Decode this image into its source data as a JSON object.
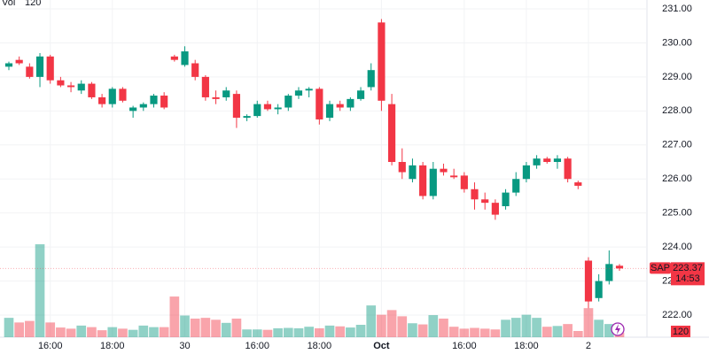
{
  "chart_data": {
    "type": "candlestick",
    "volume_label": "Vol",
    "symbol": "SAP",
    "countdown": "14:53",
    "up_color": "#089981",
    "down_color": "#f23645",
    "categories": [
      null,
      null,
      null,
      null,
      "16:00",
      null,
      null,
      null,
      null,
      null,
      "18:00",
      null,
      null,
      null,
      null,
      null,
      null,
      "30",
      null,
      null,
      null,
      null,
      null,
      null,
      "16:00",
      null,
      null,
      null,
      null,
      null,
      "18:00",
      null,
      null,
      null,
      null,
      null,
      "Oct",
      null,
      null,
      null,
      null,
      null,
      null,
      null,
      "16:00",
      null,
      null,
      null,
      null,
      null,
      "18:00",
      null,
      null,
      null,
      null,
      null,
      "2",
      null,
      null,
      null
    ],
    "open": [
      229.3,
      229.5,
      229.3,
      229.0,
      229.6,
      228.9,
      228.75,
      228.6,
      228.8,
      228.4,
      228.2,
      228.65,
      228.0,
      228.1,
      228.2,
      228.45,
      229.6,
      229.35,
      229.4,
      229.0,
      228.4,
      228.4,
      228.5,
      227.8,
      227.85,
      228.2,
      228.05,
      228.1,
      228.45,
      228.6,
      228.65,
      227.8,
      228.2,
      228.1,
      228.35,
      228.7,
      230.6,
      228.2,
      226.5,
      226.0,
      226.4,
      225.5,
      226.3,
      226.1,
      226.1,
      225.7,
      225.4,
      225.3,
      225.2,
      225.6,
      226.0,
      226.4,
      226.6,
      226.5,
      226.6,
      225.9,
      223.6,
      222.5,
      223.0,
      223.45
    ],
    "high": [
      229.45,
      229.6,
      229.4,
      229.7,
      229.65,
      229.0,
      228.85,
      228.9,
      228.85,
      228.5,
      228.7,
      228.7,
      228.15,
      228.25,
      228.5,
      228.55,
      229.65,
      229.9,
      229.5,
      229.05,
      228.6,
      228.7,
      228.6,
      227.9,
      228.3,
      228.3,
      228.2,
      228.5,
      228.7,
      228.7,
      228.7,
      228.3,
      228.3,
      228.4,
      228.7,
      229.4,
      230.7,
      228.5,
      226.9,
      226.6,
      226.5,
      226.5,
      226.45,
      226.3,
      226.2,
      225.9,
      225.6,
      225.4,
      225.7,
      226.2,
      226.5,
      226.7,
      226.65,
      226.7,
      226.65,
      225.95,
      223.7,
      223.2,
      223.9,
      223.5
    ],
    "low": [
      229.2,
      229.35,
      228.95,
      228.7,
      228.8,
      228.7,
      228.55,
      228.5,
      228.35,
      228.1,
      228.1,
      228.25,
      227.8,
      228.0,
      228.1,
      228.05,
      229.45,
      229.3,
      228.9,
      228.3,
      228.2,
      228.3,
      227.5,
      227.7,
      227.8,
      228.0,
      227.9,
      228.0,
      228.35,
      228.4,
      227.6,
      227.7,
      228.0,
      228.0,
      228.3,
      228.6,
      228.0,
      226.4,
      226.0,
      225.9,
      225.4,
      225.4,
      226.1,
      226.0,
      225.6,
      225.1,
      225.1,
      224.8,
      225.1,
      225.5,
      225.9,
      226.3,
      226.45,
      226.3,
      225.9,
      225.7,
      222.2,
      222.4,
      222.9,
      223.3
    ],
    "close": [
      229.4,
      229.4,
      229.0,
      229.6,
      228.9,
      228.75,
      228.7,
      228.8,
      228.4,
      228.2,
      228.65,
      228.3,
      228.1,
      228.2,
      228.45,
      228.1,
      229.5,
      229.75,
      229.0,
      228.4,
      228.35,
      228.6,
      227.8,
      227.85,
      228.2,
      228.05,
      228.1,
      228.45,
      228.6,
      228.65,
      227.75,
      228.2,
      228.1,
      228.35,
      228.6,
      229.2,
      228.3,
      226.5,
      226.2,
      226.4,
      225.5,
      226.3,
      226.2,
      226.05,
      225.7,
      225.4,
      225.3,
      224.95,
      225.6,
      226.0,
      226.4,
      226.6,
      226.5,
      226.6,
      226.0,
      225.8,
      222.4,
      223.0,
      223.5,
      223.37
    ],
    "volume": [
      500,
      380,
      420,
      2400,
      380,
      250,
      220,
      300,
      260,
      180,
      260,
      220,
      190,
      300,
      260,
      260,
      1050,
      560,
      480,
      500,
      450,
      370,
      480,
      200,
      200,
      190,
      230,
      240,
      230,
      270,
      230,
      300,
      280,
      250,
      320,
      820,
      580,
      700,
      540,
      360,
      330,
      570,
      480,
      270,
      220,
      240,
      220,
      200,
      450,
      500,
      580,
      500,
      270,
      290,
      340,
      160,
      750,
      450,
      340,
      120
    ],
    "ylim": [
      221.35,
      231.26
    ],
    "yticks": [
      {
        "value": 222,
        "label": "222.00"
      },
      {
        "value": 223,
        "label": "223.00"
      },
      {
        "value": 224,
        "label": "224.00"
      },
      {
        "value": 225,
        "label": "225.00"
      },
      {
        "value": 226,
        "label": "226.00"
      },
      {
        "value": 227,
        "label": "227.00"
      },
      {
        "value": 228,
        "label": "228.00"
      },
      {
        "value": 229,
        "label": "229.00"
      },
      {
        "value": 230,
        "label": "230.00"
      },
      {
        "value": 231,
        "label": "231.00"
      }
    ],
    "grid": true
  }
}
